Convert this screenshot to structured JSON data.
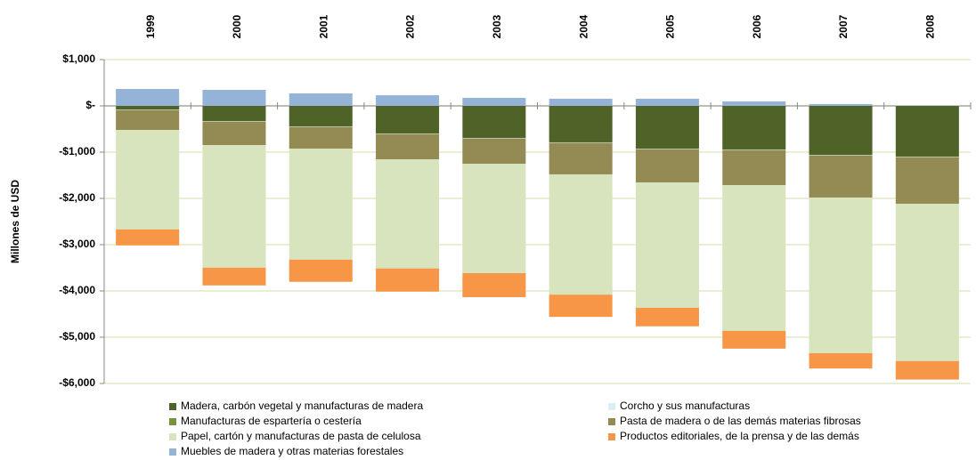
{
  "chart_data": {
    "type": "stacked_bar",
    "y_label": "Millones de USD",
    "categories": [
      "1999",
      "2000",
      "2001",
      "2002",
      "2003",
      "2004",
      "2005",
      "2006",
      "2007",
      "2008"
    ],
    "series": [
      {
        "name": "Madera, carbón vegetal y manufacturas de madera",
        "color": "#4f6228",
        "values": [
          -77,
          -327,
          -442,
          -596,
          -692,
          -788,
          -923,
          -942,
          -1058,
          -1096
        ]
      },
      {
        "name": "Corcho y sus manufacturas",
        "color": "#dbeef4",
        "values": [
          -8,
          -8,
          -8,
          -8,
          -8,
          -8,
          -8,
          -8,
          -8,
          -8
        ]
      },
      {
        "name": "Manufacturas de espartería o cestería",
        "color": "#77933c",
        "values": [
          -5,
          -5,
          -5,
          -5,
          -5,
          -5,
          -5,
          -5,
          -5,
          -5
        ]
      },
      {
        "name": "Pasta de madera o de las demás materias fibrosas",
        "color": "#948a54",
        "values": [
          -430,
          -506,
          -468,
          -545,
          -545,
          -679,
          -718,
          -757,
          -910,
          -1006
        ]
      },
      {
        "name": "Papel, cartón y manufacturas de pasta de celulosa",
        "color": "#d7e4bd",
        "values": [
          -2150,
          -2650,
          -2400,
          -2360,
          -2365,
          -2600,
          -2710,
          -3150,
          -3365,
          -3400
        ]
      },
      {
        "name": "Productos editoriales, de la prensa y de las demás",
        "color": "#f79646",
        "values": [
          -345,
          -385,
          -480,
          -500,
          -520,
          -480,
          -400,
          -385,
          -330,
          -400
        ]
      },
      {
        "name": "Muebles de madera y otras materias forestales",
        "color": "#95b3d7",
        "values": [
          365,
          346,
          270,
          230,
          173,
          154,
          154,
          96,
          40,
          10
        ]
      }
    ],
    "ylim": [
      -6000,
      1000
    ],
    "yticks": [
      {
        "value": 1000,
        "label": "$1,000"
      },
      {
        "value": 0,
        "label": "$-"
      },
      {
        "value": -1000,
        "label": "-$1,000"
      },
      {
        "value": -2000,
        "label": "-$2,000"
      },
      {
        "value": -3000,
        "label": "-$3,000"
      },
      {
        "value": -4000,
        "label": "-$4,000"
      },
      {
        "value": -5000,
        "label": "-$5,000"
      },
      {
        "value": -6000,
        "label": "-$6,000"
      }
    ],
    "grid": true
  }
}
